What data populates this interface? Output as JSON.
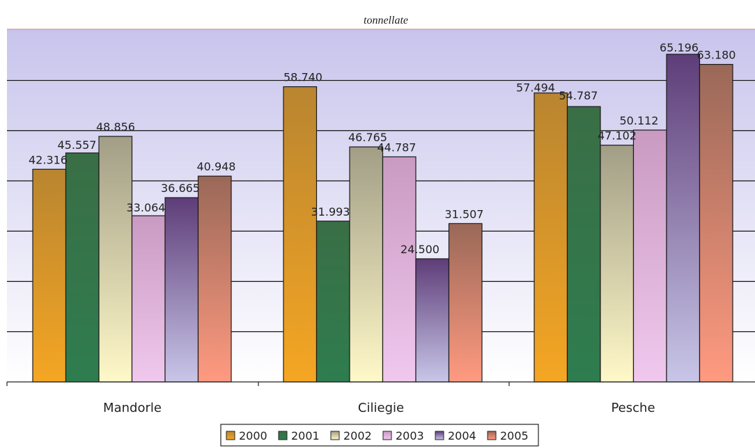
{
  "chart_data": {
    "type": "bar",
    "title": "tonnellate",
    "xlabel": "",
    "ylabel": "",
    "categories": [
      "Mandorle",
      "Ciliegie",
      "Pesche"
    ],
    "series": [
      {
        "name": "2000",
        "values": [
          42316,
          58740,
          57494
        ],
        "labels": [
          "42.316",
          "58.740",
          "57.494"
        ],
        "color_top": "#b98530",
        "color_bottom": "#f5a623"
      },
      {
        "name": "2001",
        "values": [
          45557,
          31993,
          54787
        ],
        "labels": [
          "45.557",
          "31.993",
          "54.787"
        ],
        "color_top": "#3a6e45",
        "color_bottom": "#2e7d4f"
      },
      {
        "name": "2002",
        "values": [
          48856,
          46765,
          47102
        ],
        "labels": [
          "48.856",
          "46.765",
          "47.102"
        ],
        "color_top": "#a29e86",
        "color_bottom": "#fff8c8"
      },
      {
        "name": "2003",
        "values": [
          33064,
          44787,
          50112
        ],
        "labels": [
          "33.064",
          "44.787",
          "50.112"
        ],
        "color_top": "#c99ac2",
        "color_bottom": "#f0c8ee"
      },
      {
        "name": "2004",
        "values": [
          36665,
          24500,
          65196
        ],
        "labels": [
          "36.665",
          "24.500",
          "65.196"
        ],
        "color_top": "#5e3d78",
        "color_bottom": "#c8c6e8"
      },
      {
        "name": "2005",
        "values": [
          40948,
          31507,
          63180
        ],
        "labels": [
          "40.948",
          "31.507",
          "63.180"
        ],
        "color_top": "#9a6858",
        "color_bottom": "#ff9a80"
      }
    ],
    "ylim": [
      0,
      70000
    ],
    "grid": true,
    "legend_position": "bottom-center",
    "plot_background_top": "#c8c4ec",
    "plot_background_bottom": "#ffffff"
  }
}
